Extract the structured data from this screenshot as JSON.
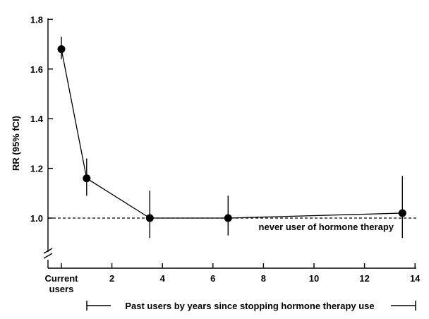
{
  "chart_data": {
    "type": "line",
    "title": "",
    "ylabel": "RR (95% fCI)",
    "xlabel": "Past users by years since stopping hormone therapy use",
    "ylim": [
      0.9,
      1.8
    ],
    "xlim": [
      -0.5,
      14
    ],
    "grid": false,
    "y_axis_break": true,
    "y_ticks": [
      1.0,
      1.2,
      1.4,
      1.6,
      1.8
    ],
    "y_tick_labels": [
      "1.0",
      "1.2",
      "1.4",
      "1.6",
      "1.8"
    ],
    "x_ticks": [
      2,
      4,
      6,
      8,
      10,
      12,
      14
    ],
    "x_tick_labels": [
      "2",
      "4",
      "6",
      "8",
      "10",
      "12",
      "14"
    ],
    "current_label_line1": "Current",
    "current_label_line2": "users",
    "series": [
      {
        "x": [
          0,
          1,
          3.5,
          6.6,
          13.5
        ],
        "y": [
          1.68,
          1.16,
          1.0,
          1.0,
          1.02
        ],
        "ci_low": [
          1.64,
          1.09,
          0.92,
          0.93,
          0.92
        ],
        "ci_high": [
          1.73,
          1.24,
          1.11,
          1.09,
          1.17
        ]
      }
    ],
    "reference_line": {
      "y": 1.0,
      "style": "dashed",
      "label": "never user of hormone therapy"
    }
  }
}
